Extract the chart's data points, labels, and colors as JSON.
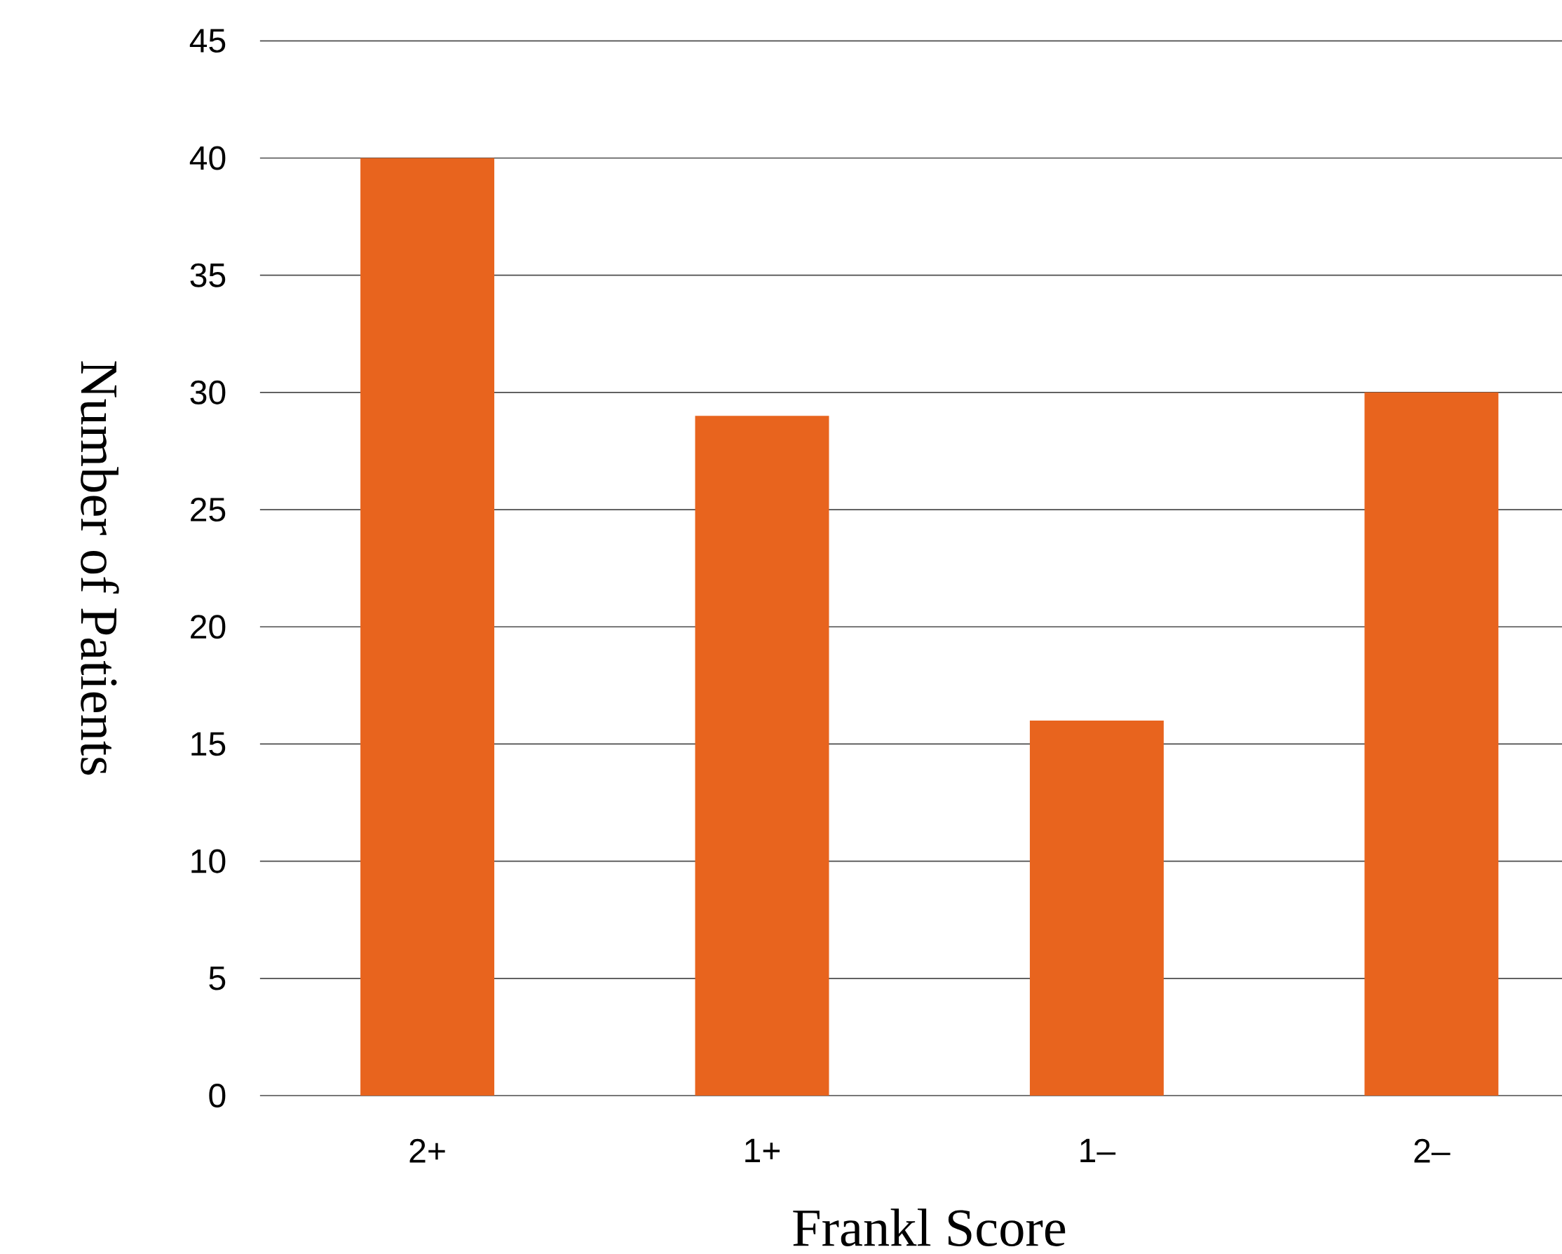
{
  "chart_data": {
    "type": "bar",
    "xlabel": "Frankl Score",
    "ylabel": "Number of Patients",
    "categories": [
      "2+",
      "1+",
      "1–",
      "2–"
    ],
    "values": [
      40,
      29,
      16,
      30
    ],
    "color": "#e8641e",
    "ylim": [
      0,
      45
    ],
    "yticks": [
      0,
      5,
      10,
      15,
      20,
      25,
      30,
      35,
      40,
      45
    ],
    "grid": "y"
  }
}
